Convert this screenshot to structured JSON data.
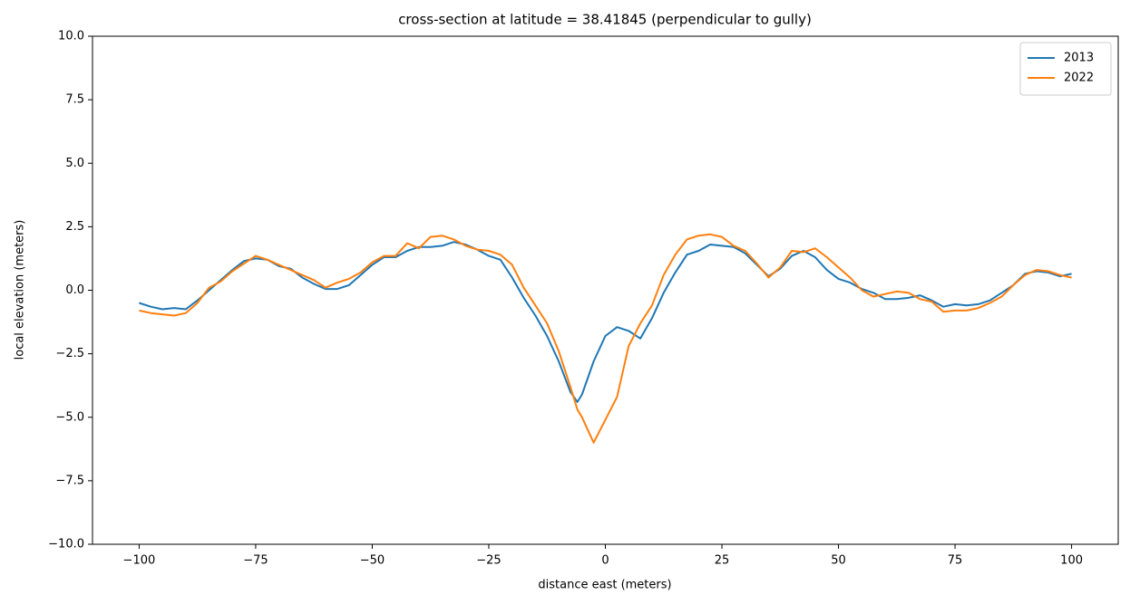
{
  "chart_data": {
    "type": "line",
    "title": "cross-section at latitude = 38.41845 (perpendicular to gully)",
    "x_label": "distance east (meters)",
    "y_label": "local elevation (meters)",
    "x": [
      -100,
      -97.5,
      -95,
      -92.5,
      -90,
      -87.5,
      -85,
      -82.5,
      -80,
      -77.5,
      -75,
      -72.5,
      -70,
      -67.5,
      -65,
      -62.5,
      -60,
      -57.5,
      -55,
      -52.5,
      -50,
      -47.5,
      -45,
      -42.5,
      -40,
      -37.5,
      -35,
      -32.5,
      -30,
      -27.5,
      -25,
      -22.5,
      -20,
      -17.5,
      -15,
      -12.5,
      -10,
      -7.5,
      -6,
      -5,
      -2.5,
      0,
      2.5,
      5,
      7.5,
      10,
      12.5,
      15,
      17.5,
      20,
      22.5,
      25,
      27.5,
      30,
      32.5,
      35,
      37.5,
      40,
      42.5,
      45,
      47.5,
      50,
      52.5,
      55,
      57.5,
      60,
      62.5,
      65,
      67.5,
      70,
      72.5,
      75,
      77.5,
      80,
      82.5,
      85,
      87.5,
      90,
      92.5,
      95,
      97.5,
      100
    ],
    "series": [
      {
        "name": "2013",
        "color": "#1f77b4",
        "values": [
          -0.5,
          -0.65,
          -0.75,
          -0.7,
          -0.75,
          -0.4,
          0.0,
          0.4,
          0.8,
          1.15,
          1.25,
          1.2,
          0.95,
          0.85,
          0.5,
          0.25,
          0.05,
          0.05,
          0.2,
          0.6,
          1.0,
          1.3,
          1.3,
          1.55,
          1.7,
          1.7,
          1.75,
          1.9,
          1.8,
          1.6,
          1.35,
          1.2,
          0.5,
          -0.3,
          -1.0,
          -1.8,
          -2.8,
          -4.0,
          -4.4,
          -4.1,
          -2.8,
          -1.8,
          -1.45,
          -1.6,
          -1.9,
          -1.1,
          -0.1,
          0.7,
          1.4,
          1.55,
          1.8,
          1.75,
          1.7,
          1.45,
          1.0,
          0.55,
          0.85,
          1.35,
          1.55,
          1.3,
          0.8,
          0.45,
          0.3,
          0.05,
          -0.1,
          -0.35,
          -0.35,
          -0.3,
          -0.2,
          -0.4,
          -0.65,
          -0.55,
          -0.6,
          -0.55,
          -0.4,
          -0.1,
          0.2,
          0.65,
          0.75,
          0.7,
          0.55,
          0.65
        ]
      },
      {
        "name": "2022",
        "color": "#ff7f0e",
        "values": [
          -0.8,
          -0.9,
          -0.95,
          -1.0,
          -0.9,
          -0.5,
          0.1,
          0.35,
          0.75,
          1.05,
          1.35,
          1.2,
          1.0,
          0.8,
          0.6,
          0.4,
          0.1,
          0.3,
          0.45,
          0.7,
          1.1,
          1.35,
          1.35,
          1.85,
          1.65,
          2.1,
          2.15,
          2.0,
          1.75,
          1.6,
          1.55,
          1.4,
          1.0,
          0.1,
          -0.6,
          -1.3,
          -2.4,
          -3.8,
          -4.7,
          -5.0,
          -6.0,
          -5.1,
          -4.2,
          -2.2,
          -1.3,
          -0.6,
          0.6,
          1.4,
          2.0,
          2.15,
          2.2,
          2.1,
          1.75,
          1.55,
          1.05,
          0.5,
          0.9,
          1.55,
          1.5,
          1.65,
          1.3,
          0.9,
          0.5,
          0.0,
          -0.25,
          -0.15,
          -0.05,
          -0.1,
          -0.35,
          -0.45,
          -0.85,
          -0.8,
          -0.8,
          -0.7,
          -0.5,
          -0.25,
          0.2,
          0.6,
          0.8,
          0.75,
          0.6,
          0.5
        ]
      }
    ],
    "xlim": [
      -110,
      110
    ],
    "ylim": [
      -10,
      10
    ],
    "xticks": [
      {
        "value": -100,
        "label": "−100"
      },
      {
        "value": -75,
        "label": "−75"
      },
      {
        "value": -50,
        "label": "−50"
      },
      {
        "value": -25,
        "label": "−25"
      },
      0,
      25,
      50,
      75,
      100
    ],
    "yticks": [
      {
        "value": -10,
        "label": "−10.0"
      },
      {
        "value": -7.5,
        "label": "−7.5"
      },
      {
        "value": -5,
        "label": "−5.0"
      },
      {
        "value": -2.5,
        "label": "−2.5"
      },
      {
        "value": 0,
        "label": "0.0"
      },
      2.5,
      {
        "value": 5,
        "label": "5.0"
      },
      7.5,
      {
        "value": 10,
        "label": "10.0"
      }
    ],
    "legend": "upper right"
  }
}
